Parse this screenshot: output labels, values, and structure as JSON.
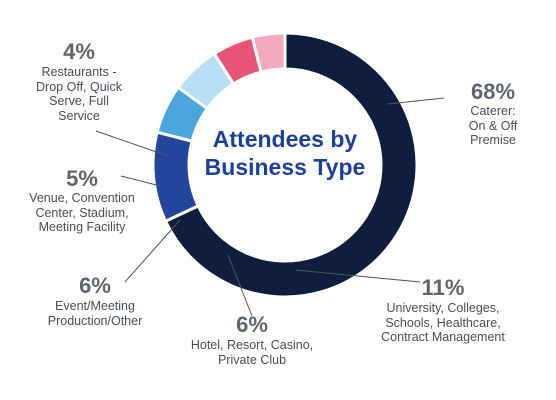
{
  "chart_data": {
    "type": "pie",
    "title_lines": [
      "Attendees by",
      "Business Type"
    ],
    "slices": [
      {
        "pct_text": "68%",
        "value": 68,
        "label_lines": [
          "Caterer:",
          "On & Off",
          "Premise"
        ],
        "color": "#0f1e3e"
      },
      {
        "pct_text": "11%",
        "value": 11,
        "label_lines": [
          "University, Colleges,",
          "Schools, Healthcare,",
          "Contract Management"
        ],
        "color": "#24459c"
      },
      {
        "pct_text": "6%",
        "value": 6,
        "label_lines": [
          "Hotel, Resort, Casino,",
          "Private Club"
        ],
        "color": "#4aa6dd"
      },
      {
        "pct_text": "6%",
        "value": 6,
        "label_lines": [
          "Event/Meeting",
          "Production/Other"
        ],
        "color": "#b7dff6"
      },
      {
        "pct_text": "5%",
        "value": 5,
        "label_lines": [
          "Venue, Convention",
          "Center, Stadium,",
          "Meeting Facility"
        ],
        "color": "#e85478"
      },
      {
        "pct_text": "4%",
        "value": 4,
        "label_lines": [
          "Restaurants -",
          "Drop Off, Quick",
          "Serve, Full",
          "Service"
        ],
        "color": "#f4a9bf"
      }
    ]
  }
}
